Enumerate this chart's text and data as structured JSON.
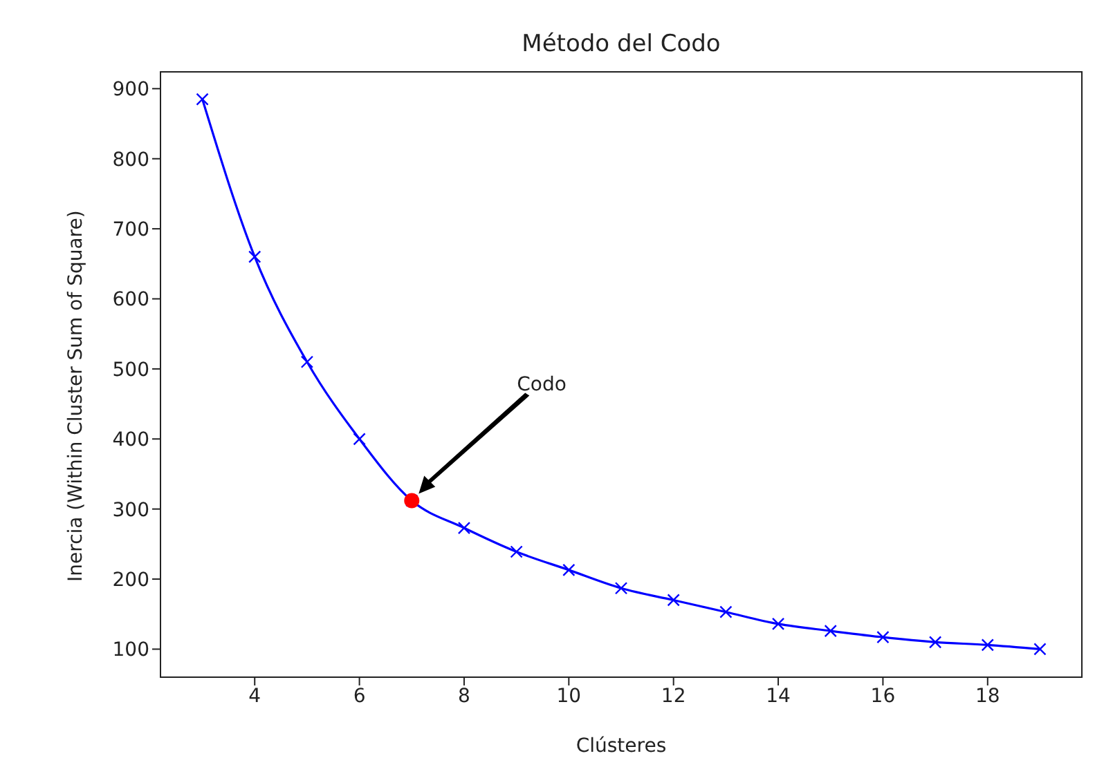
{
  "chart_data": {
    "type": "line",
    "title": "Método del Codo",
    "xlabel": "Clústeres",
    "ylabel": "Inercia (Within Cluster Sum of Square)",
    "x": [
      3,
      4,
      5,
      6,
      7,
      8,
      9,
      10,
      11,
      12,
      13,
      14,
      15,
      16,
      17,
      18,
      19
    ],
    "series": [
      {
        "color": "#0000ff",
        "marker": "cross",
        "values": [
          885,
          660,
          510,
          400,
          312,
          273,
          239,
          213,
          187,
          170,
          153,
          136,
          126,
          117,
          110,
          106,
          100
        ]
      },
      {
        "type": "scatter",
        "color": "#ff0000",
        "marker": "circle",
        "x": [
          7
        ],
        "values": [
          312
        ]
      }
    ],
    "xlim": [
      2.2,
      19.8
    ],
    "xticks": [
      4,
      6,
      8,
      10,
      12,
      14,
      16,
      18
    ],
    "ylim": [
      60,
      924
    ],
    "yticks": [
      100,
      200,
      300,
      400,
      500,
      600,
      700,
      800,
      900
    ],
    "annotations": [
      "Codo"
    ],
    "grid": false,
    "legend": false
  }
}
